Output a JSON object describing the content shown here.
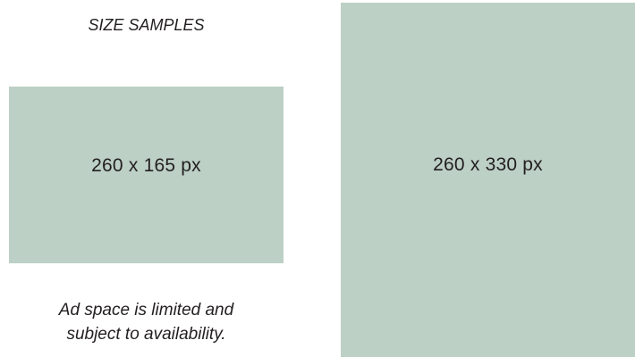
{
  "heading": "SIZE SAMPLES",
  "samples": [
    {
      "label": "260 x 165 px"
    },
    {
      "label": "260 x 330 px"
    }
  ],
  "note": {
    "line1": "Ad space is limited and",
    "line2": "subject to availability."
  },
  "colors": {
    "sample_fill": "#bdd0c6",
    "text": "#231f20",
    "background": "#ffffff"
  }
}
